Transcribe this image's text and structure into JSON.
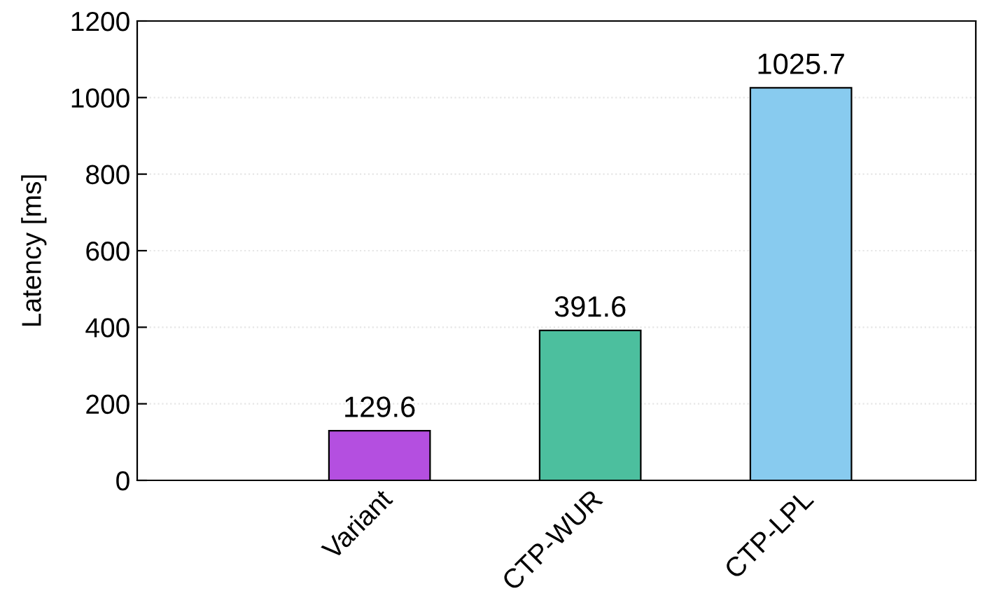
{
  "chart_data": {
    "type": "bar",
    "ylabel": "Latency [ms]",
    "categories": [
      "Variant",
      "CTP-WUR",
      "CTP-LPL"
    ],
    "values": [
      129.6,
      391.6,
      1025.7
    ],
    "colors": [
      "#b44fe0",
      "#4cbf9e",
      "#88cbef"
    ],
    "ylim": [
      0,
      1200
    ],
    "yticks": [
      0,
      200,
      400,
      600,
      800,
      1000,
      1200
    ],
    "grid": "y",
    "data_labels": true
  }
}
